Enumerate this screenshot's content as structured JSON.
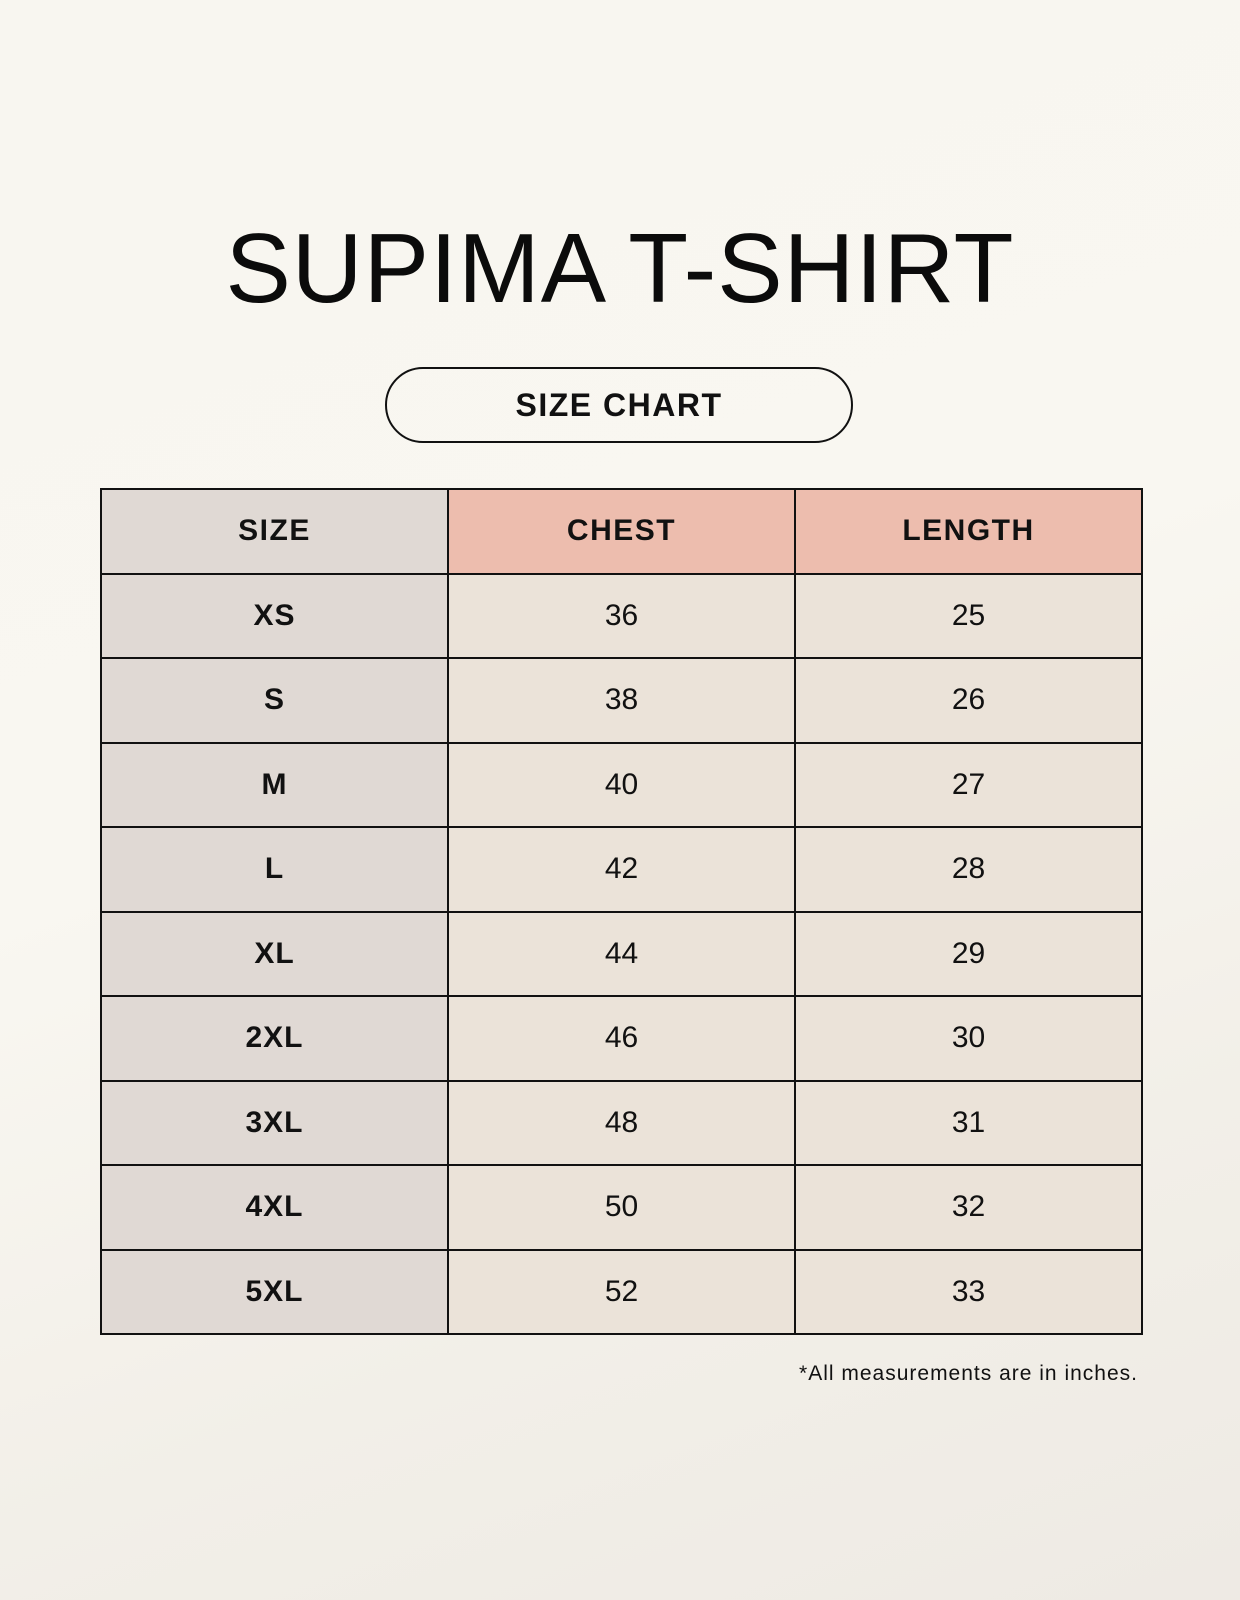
{
  "title": "SUPIMA T-SHIRT",
  "subtitle": "SIZE CHART",
  "table": {
    "headers": [
      "SIZE",
      "CHEST",
      "LENGTH"
    ],
    "rows": [
      [
        "XS",
        "36",
        "25"
      ],
      [
        "S",
        "38",
        "26"
      ],
      [
        "M",
        "40",
        "27"
      ],
      [
        "L",
        "42",
        "28"
      ],
      [
        "XL",
        "44",
        "29"
      ],
      [
        "2XL",
        "46",
        "30"
      ],
      [
        "3XL",
        "48",
        "31"
      ],
      [
        "4XL",
        "50",
        "32"
      ],
      [
        "5XL",
        "52",
        "33"
      ]
    ]
  },
  "footnote": "*All measurements are in inches.",
  "colors": {
    "size_column": "#e0d9d4",
    "header_accent": "#edbdae",
    "value_cells": "#ebe3d9"
  }
}
